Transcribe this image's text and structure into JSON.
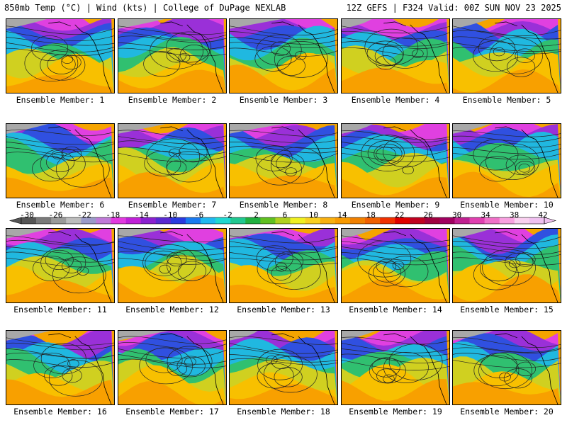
{
  "header": {
    "left": "850mb Temp (°C) | Wind (kts) | College of DuPage NEXLAB",
    "right": "12Z GEFS | F324 Valid: 00Z SUN NOV 23 2025"
  },
  "panel_label_prefix": "Ensemble Member:",
  "members": [
    {
      "label": "Ensemble Member: 1"
    },
    {
      "label": "Ensemble Member: 2"
    },
    {
      "label": "Ensemble Member: 3"
    },
    {
      "label": "Ensemble Member: 4"
    },
    {
      "label": "Ensemble Member: 5"
    },
    {
      "label": "Ensemble Member: 6"
    },
    {
      "label": "Ensemble Member: 7"
    },
    {
      "label": "Ensemble Member: 8"
    },
    {
      "label": "Ensemble Member: 9"
    },
    {
      "label": "Ensemble Member: 10"
    },
    {
      "label": "Ensemble Member: 11"
    },
    {
      "label": "Ensemble Member: 12"
    },
    {
      "label": "Ensemble Member: 13"
    },
    {
      "label": "Ensemble Member: 14"
    },
    {
      "label": "Ensemble Member: 15"
    },
    {
      "label": "Ensemble Member: 16"
    },
    {
      "label": "Ensemble Member: 17"
    },
    {
      "label": "Ensemble Member: 18"
    },
    {
      "label": "Ensemble Member: 19"
    },
    {
      "label": "Ensemble Member: 20"
    }
  ],
  "colorbar": {
    "ticks": [
      "-30",
      "-26",
      "-22",
      "-18",
      "-14",
      "-10",
      "-6",
      "-2",
      "2",
      "6",
      "10",
      "14",
      "18",
      "22",
      "26",
      "30",
      "34",
      "38",
      "42"
    ],
    "colors": [
      "#555555",
      "#7a7a7a",
      "#9a9a9a",
      "#bdbdbd",
      "#9a9ac8",
      "#c07ad8",
      "#e23ae0",
      "#c020d8",
      "#8a20d0",
      "#5a2ad0",
      "#2a3ae0",
      "#1a7af0",
      "#20b8f0",
      "#20d8d0",
      "#20c890",
      "#20b040",
      "#60c020",
      "#b0d020",
      "#f0f020",
      "#f8d020",
      "#f8b010",
      "#f89a00",
      "#f08000",
      "#f06000",
      "#f03000",
      "#e00000",
      "#c00020",
      "#a00040",
      "#a00060",
      "#c02090",
      "#e040b0",
      "#f070c8",
      "#f8a0e0",
      "#fad0f0",
      "#f0c0f0"
    ]
  }
}
